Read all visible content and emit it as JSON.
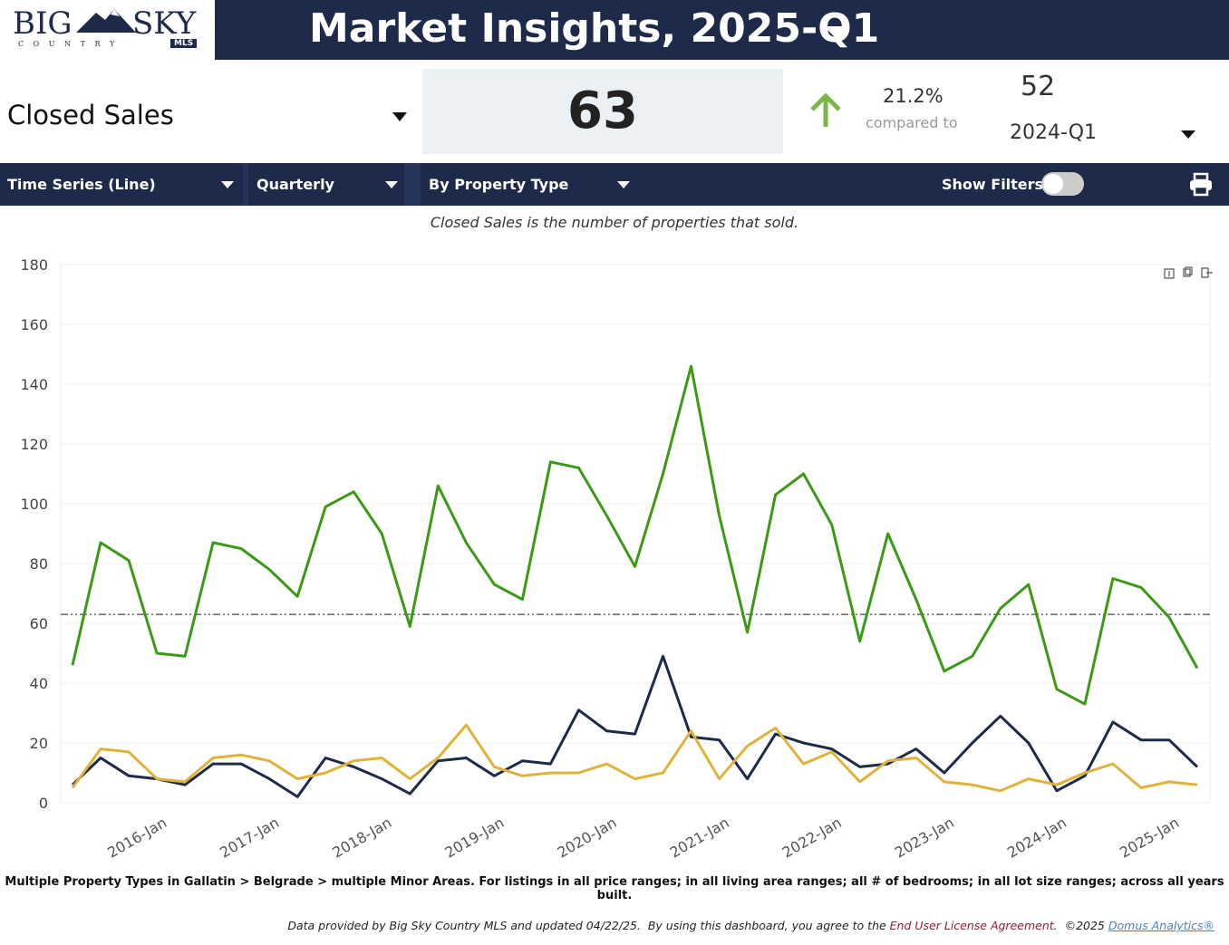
{
  "header": {
    "logo": {
      "big": "BIG",
      "sky": "SKY",
      "country": "C O U N T R Y",
      "mls": "MLS"
    },
    "title": "Market Insights, 2025-Q1"
  },
  "kpi": {
    "metric": "Closed Sales",
    "value": 63,
    "change": "21.2%",
    "compared_label": "compared to",
    "compared_value": 52,
    "compared_period": "2024-Q1"
  },
  "toolbar": {
    "chart_type": "Time Series (Line)",
    "interval": "Quarterly",
    "breakdown": "By Property Type",
    "filters_label": "Show Filters:"
  },
  "description": "Closed Sales is the number of properties that sold.",
  "chart_data": {
    "type": "line",
    "categories": [
      null,
      null,
      null,
      null,
      "2016-Jan",
      null,
      null,
      null,
      "2017-Jan",
      null,
      null,
      null,
      "2018-Jan",
      null,
      null,
      null,
      "2019-Jan",
      null,
      null,
      null,
      "2020-Jan",
      null,
      null,
      null,
      "2021-Jan",
      null,
      null,
      null,
      "2022-Jan",
      null,
      null,
      null,
      "2023-Jan",
      null,
      null,
      null,
      "2024-Jan",
      null,
      null,
      null,
      "2025-Jan"
    ],
    "series": [
      {
        "color": "#3b9a15",
        "values": [
          46,
          87,
          81,
          50,
          49,
          87,
          85,
          78,
          69,
          99,
          104,
          90,
          59,
          106,
          87,
          73,
          68,
          114,
          112,
          96,
          79,
          110,
          146,
          96,
          57,
          103,
          110,
          93,
          54,
          90,
          68,
          44,
          49,
          65,
          73,
          38,
          33,
          75,
          72,
          62,
          45
        ]
      },
      {
        "color": "#1e2a4a",
        "values": [
          6,
          15,
          9,
          8,
          6,
          13,
          13,
          8,
          2,
          15,
          12,
          8,
          3,
          14,
          15,
          9,
          14,
          13,
          31,
          24,
          23,
          49,
          22,
          21,
          8,
          23,
          20,
          18,
          12,
          13,
          18,
          10,
          20,
          29,
          20,
          4,
          9,
          27,
          21,
          21,
          12
        ]
      },
      {
        "color": "#dfb23a",
        "values": [
          5,
          18,
          17,
          8,
          7,
          15,
          16,
          14,
          8,
          10,
          14,
          15,
          8,
          15,
          26,
          12,
          9,
          10,
          10,
          13,
          8,
          10,
          24,
          8,
          19,
          25,
          13,
          17,
          7,
          14,
          15,
          7,
          6,
          4,
          8,
          6,
          10,
          13,
          5,
          7,
          6
        ]
      }
    ],
    "reference_line": 63,
    "ylim": [
      0,
      180
    ],
    "yticks": [
      0,
      20,
      40,
      60,
      80,
      100,
      120,
      140,
      160,
      180
    ],
    "grid": true
  },
  "note": "Multiple Property Types in Gallatin > Belgrade > multiple Minor Areas. For listings in all price ranges; in all living area ranges; all # of bedrooms; in all lot size ranges; across all years built.",
  "footer": {
    "text": "Data provided by Big Sky Country MLS and updated 04/22/25.  By using this dashboard, you agree to the ",
    "eula": "End User License Agreement",
    "copyright": ".  ©2025 ",
    "vendor": "Domus Analytics®"
  }
}
